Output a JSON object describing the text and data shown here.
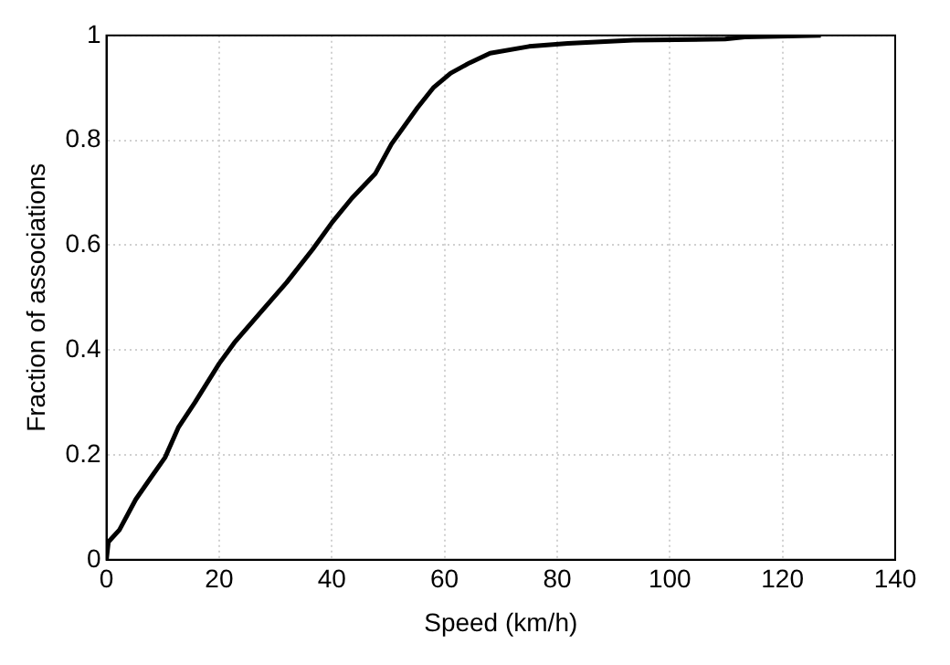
{
  "chart_data": {
    "type": "line",
    "xlabel": "Speed (km/h)",
    "ylabel": "Fraction of associations",
    "series": [
      {
        "color": "#000000",
        "x": [
          0,
          0.35,
          2.3,
          5.2,
          8.1,
          10.4,
          12.8,
          15.7,
          20,
          22.7,
          27.3,
          32,
          36.6,
          40.1,
          43.6,
          47.7,
          50.6,
          55.2,
          58,
          61.1,
          64.5,
          68.1,
          75,
          81.9,
          93.5,
          109.8,
          113.3,
          126.8
        ],
        "values": [
          0,
          0.034,
          0.057,
          0.115,
          0.16,
          0.195,
          0.253,
          0.3,
          0.374,
          0.414,
          0.471,
          0.529,
          0.592,
          0.644,
          0.69,
          0.736,
          0.793,
          0.862,
          0.9,
          0.928,
          0.948,
          0.966,
          0.979,
          0.985,
          0.991,
          0.993,
          0.997,
          1
        ]
      }
    ],
    "xlim": [
      0,
      140
    ],
    "xticks": [
      0,
      20,
      40,
      60,
      80,
      100,
      120,
      140
    ],
    "ylim": [
      0,
      1
    ],
    "yticks": [
      0,
      0.2,
      0.4,
      0.6,
      0.8,
      1
    ],
    "grid": true,
    "legend": false,
    "marker": "none",
    "line_style": "solid"
  }
}
